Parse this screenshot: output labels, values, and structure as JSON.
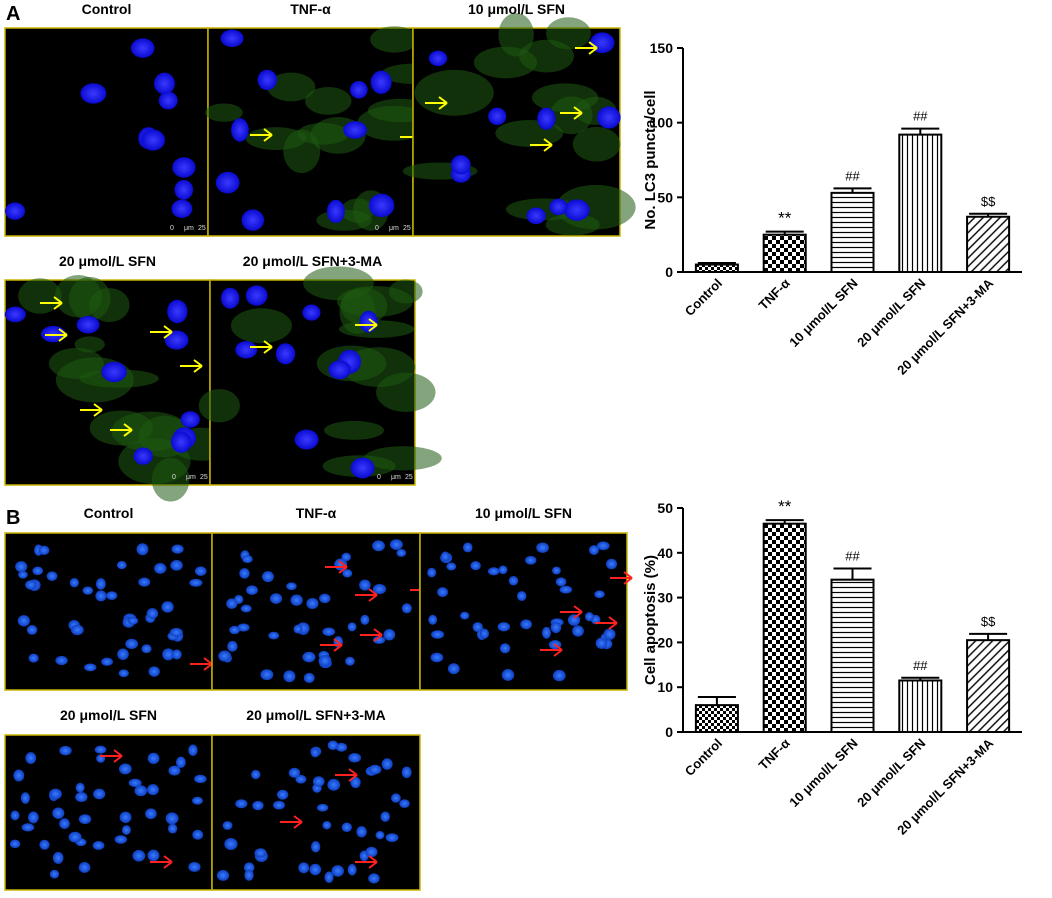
{
  "panels": [
    {
      "label": "A",
      "images": [
        {
          "title": "Control",
          "scale": [
            "0",
            "μm",
            "25"
          ]
        },
        {
          "title": "TNF-α",
          "scale": [
            "0",
            "μm",
            "25"
          ]
        },
        {
          "title": "10 μmol/L SFN"
        },
        {
          "title": "20 μmol/L SFN",
          "scale": [
            "0",
            "μm",
            "25"
          ]
        },
        {
          "title": "20 μmol/L SFN+3-MA",
          "scale": [
            "0",
            "μm",
            "25"
          ]
        }
      ]
    },
    {
      "label": "B",
      "images": [
        {
          "title": "Control"
        },
        {
          "title": "TNF-α"
        },
        {
          "title": "10 μmol/L SFN"
        },
        {
          "title": "20 μmol/L SFN"
        },
        {
          "title": "20 μmol/L SFN+3-MA"
        }
      ]
    }
  ],
  "chart_data": [
    {
      "type": "bar",
      "y_label": "No. LC3 puncta/cell",
      "categories": [
        "Control",
        "TNF-α",
        "10 μmol/L SFN",
        "20 μmol/L SFN",
        "20 μmol/L SFN+3-MA"
      ],
      "values": [
        5,
        25,
        53,
        92,
        37
      ],
      "errors": [
        1,
        2,
        3,
        4,
        2
      ],
      "annotations": [
        null,
        "**",
        "##",
        "##",
        "$$"
      ],
      "patterns": [
        "checker-small",
        "checker",
        "horizontal",
        "vertical",
        "diagonal"
      ],
      "ylim": [
        0,
        150
      ],
      "yticks": [
        0,
        50,
        100,
        150
      ]
    },
    {
      "type": "bar",
      "y_label": "Cell apoptosis (%)",
      "categories": [
        "Control",
        "TNF-α",
        "10 μmol/L SFN",
        "20 μmol/L SFN",
        "20 μmol/L SFN+3-MA"
      ],
      "values": [
        6,
        46.5,
        34,
        11.5,
        20.5
      ],
      "errors": [
        1.8,
        0.8,
        2.5,
        0.6,
        1.4
      ],
      "annotations": [
        null,
        "**",
        "##",
        "##",
        "$$"
      ],
      "patterns": [
        "checker-small",
        "checker",
        "horizontal",
        "vertical",
        "diagonal"
      ],
      "ylim": [
        0,
        50
      ],
      "yticks": [
        0,
        10,
        20,
        30,
        40,
        50
      ]
    }
  ]
}
